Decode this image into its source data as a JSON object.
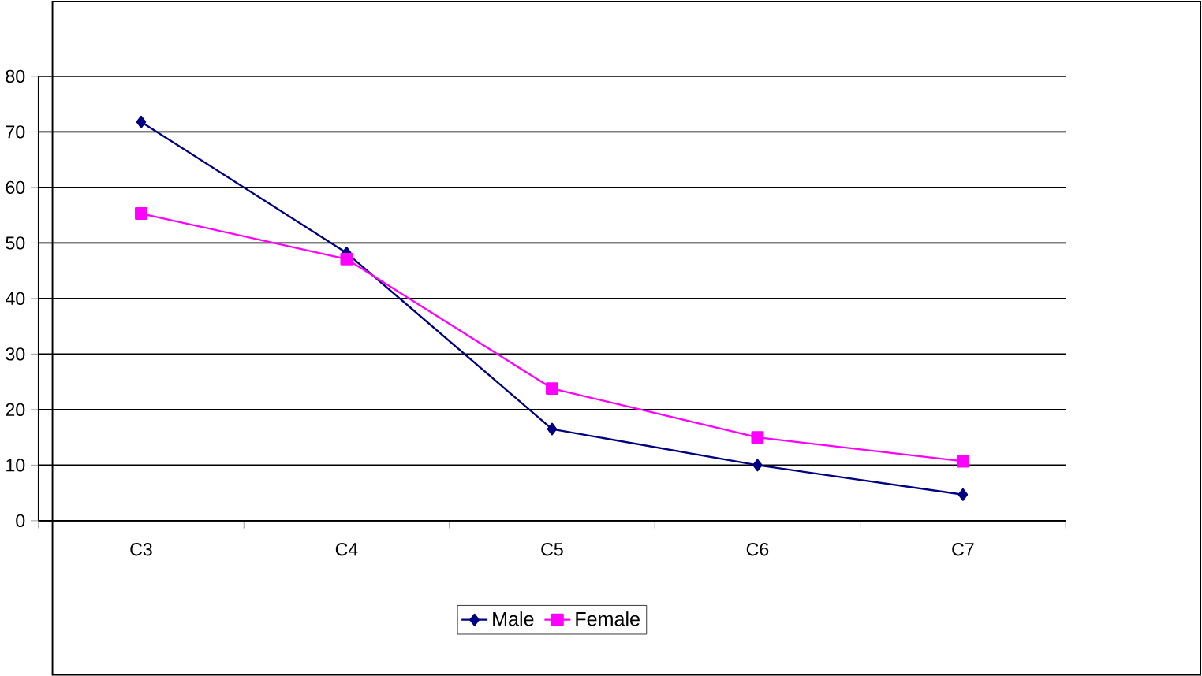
{
  "chart_data": {
    "type": "line",
    "categories": [
      "C3",
      "C4",
      "C5",
      "C6",
      "C7"
    ],
    "series": [
      {
        "name": "Male",
        "color": "#000080",
        "marker": "diamond",
        "values": [
          71.8,
          48.2,
          16.5,
          10,
          4.7
        ]
      },
      {
        "name": "Female",
        "color": "#ff00ff",
        "marker": "square",
        "values": [
          55.3,
          47.1,
          23.8,
          15,
          10.7
        ]
      }
    ],
    "ylim": [
      0,
      80
    ],
    "yticks": [
      0,
      10,
      20,
      30,
      40,
      50,
      60,
      70,
      80
    ],
    "grid": "y",
    "legend": "bottom",
    "line_style": "solid"
  }
}
